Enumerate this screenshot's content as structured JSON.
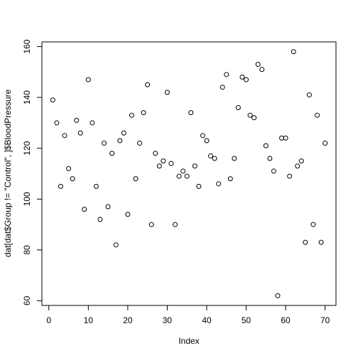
{
  "chart_data": {
    "type": "scatter",
    "x_label": "Index",
    "y_label": "dat[dat$Group != \"Control\", ]$BloodPressure",
    "x": [
      1,
      2,
      3,
      4,
      5,
      6,
      7,
      8,
      9,
      10,
      11,
      12,
      13,
      14,
      15,
      16,
      17,
      18,
      19,
      20,
      21,
      22,
      23,
      24,
      25,
      26,
      27,
      28,
      29,
      30,
      31,
      32,
      33,
      34,
      35,
      36,
      37,
      38,
      39,
      40,
      41,
      42,
      43,
      44,
      45,
      46,
      47,
      48,
      49,
      50,
      51,
      52,
      53,
      54,
      55,
      56,
      57,
      58,
      59,
      60,
      61,
      62,
      63,
      64,
      65,
      66,
      67,
      68,
      69,
      70
    ],
    "values": [
      139,
      130,
      105,
      125,
      112,
      108,
      131,
      126,
      96,
      147,
      130,
      105,
      92,
      122,
      97,
      118,
      82,
      123,
      126,
      94,
      133,
      108,
      122,
      134,
      145,
      90,
      118,
      113,
      115,
      142,
      114,
      90,
      109,
      111,
      109,
      134,
      113,
      105,
      125,
      123,
      117,
      116,
      106,
      144,
      149,
      108,
      116,
      136,
      148,
      147,
      133,
      132,
      153,
      151,
      121,
      116,
      111,
      62,
      124,
      124,
      109,
      158,
      113,
      115,
      83,
      141,
      90,
      133,
      83,
      122
    ],
    "color": "#000000",
    "xlim": [
      -1.76,
      72.76
    ],
    "xticks": [
      0,
      10,
      20,
      30,
      40,
      50,
      60,
      70
    ],
    "ylim": [
      58.16,
      161.84
    ],
    "yticks": [
      60,
      80,
      100,
      120,
      140,
      160
    ]
  }
}
